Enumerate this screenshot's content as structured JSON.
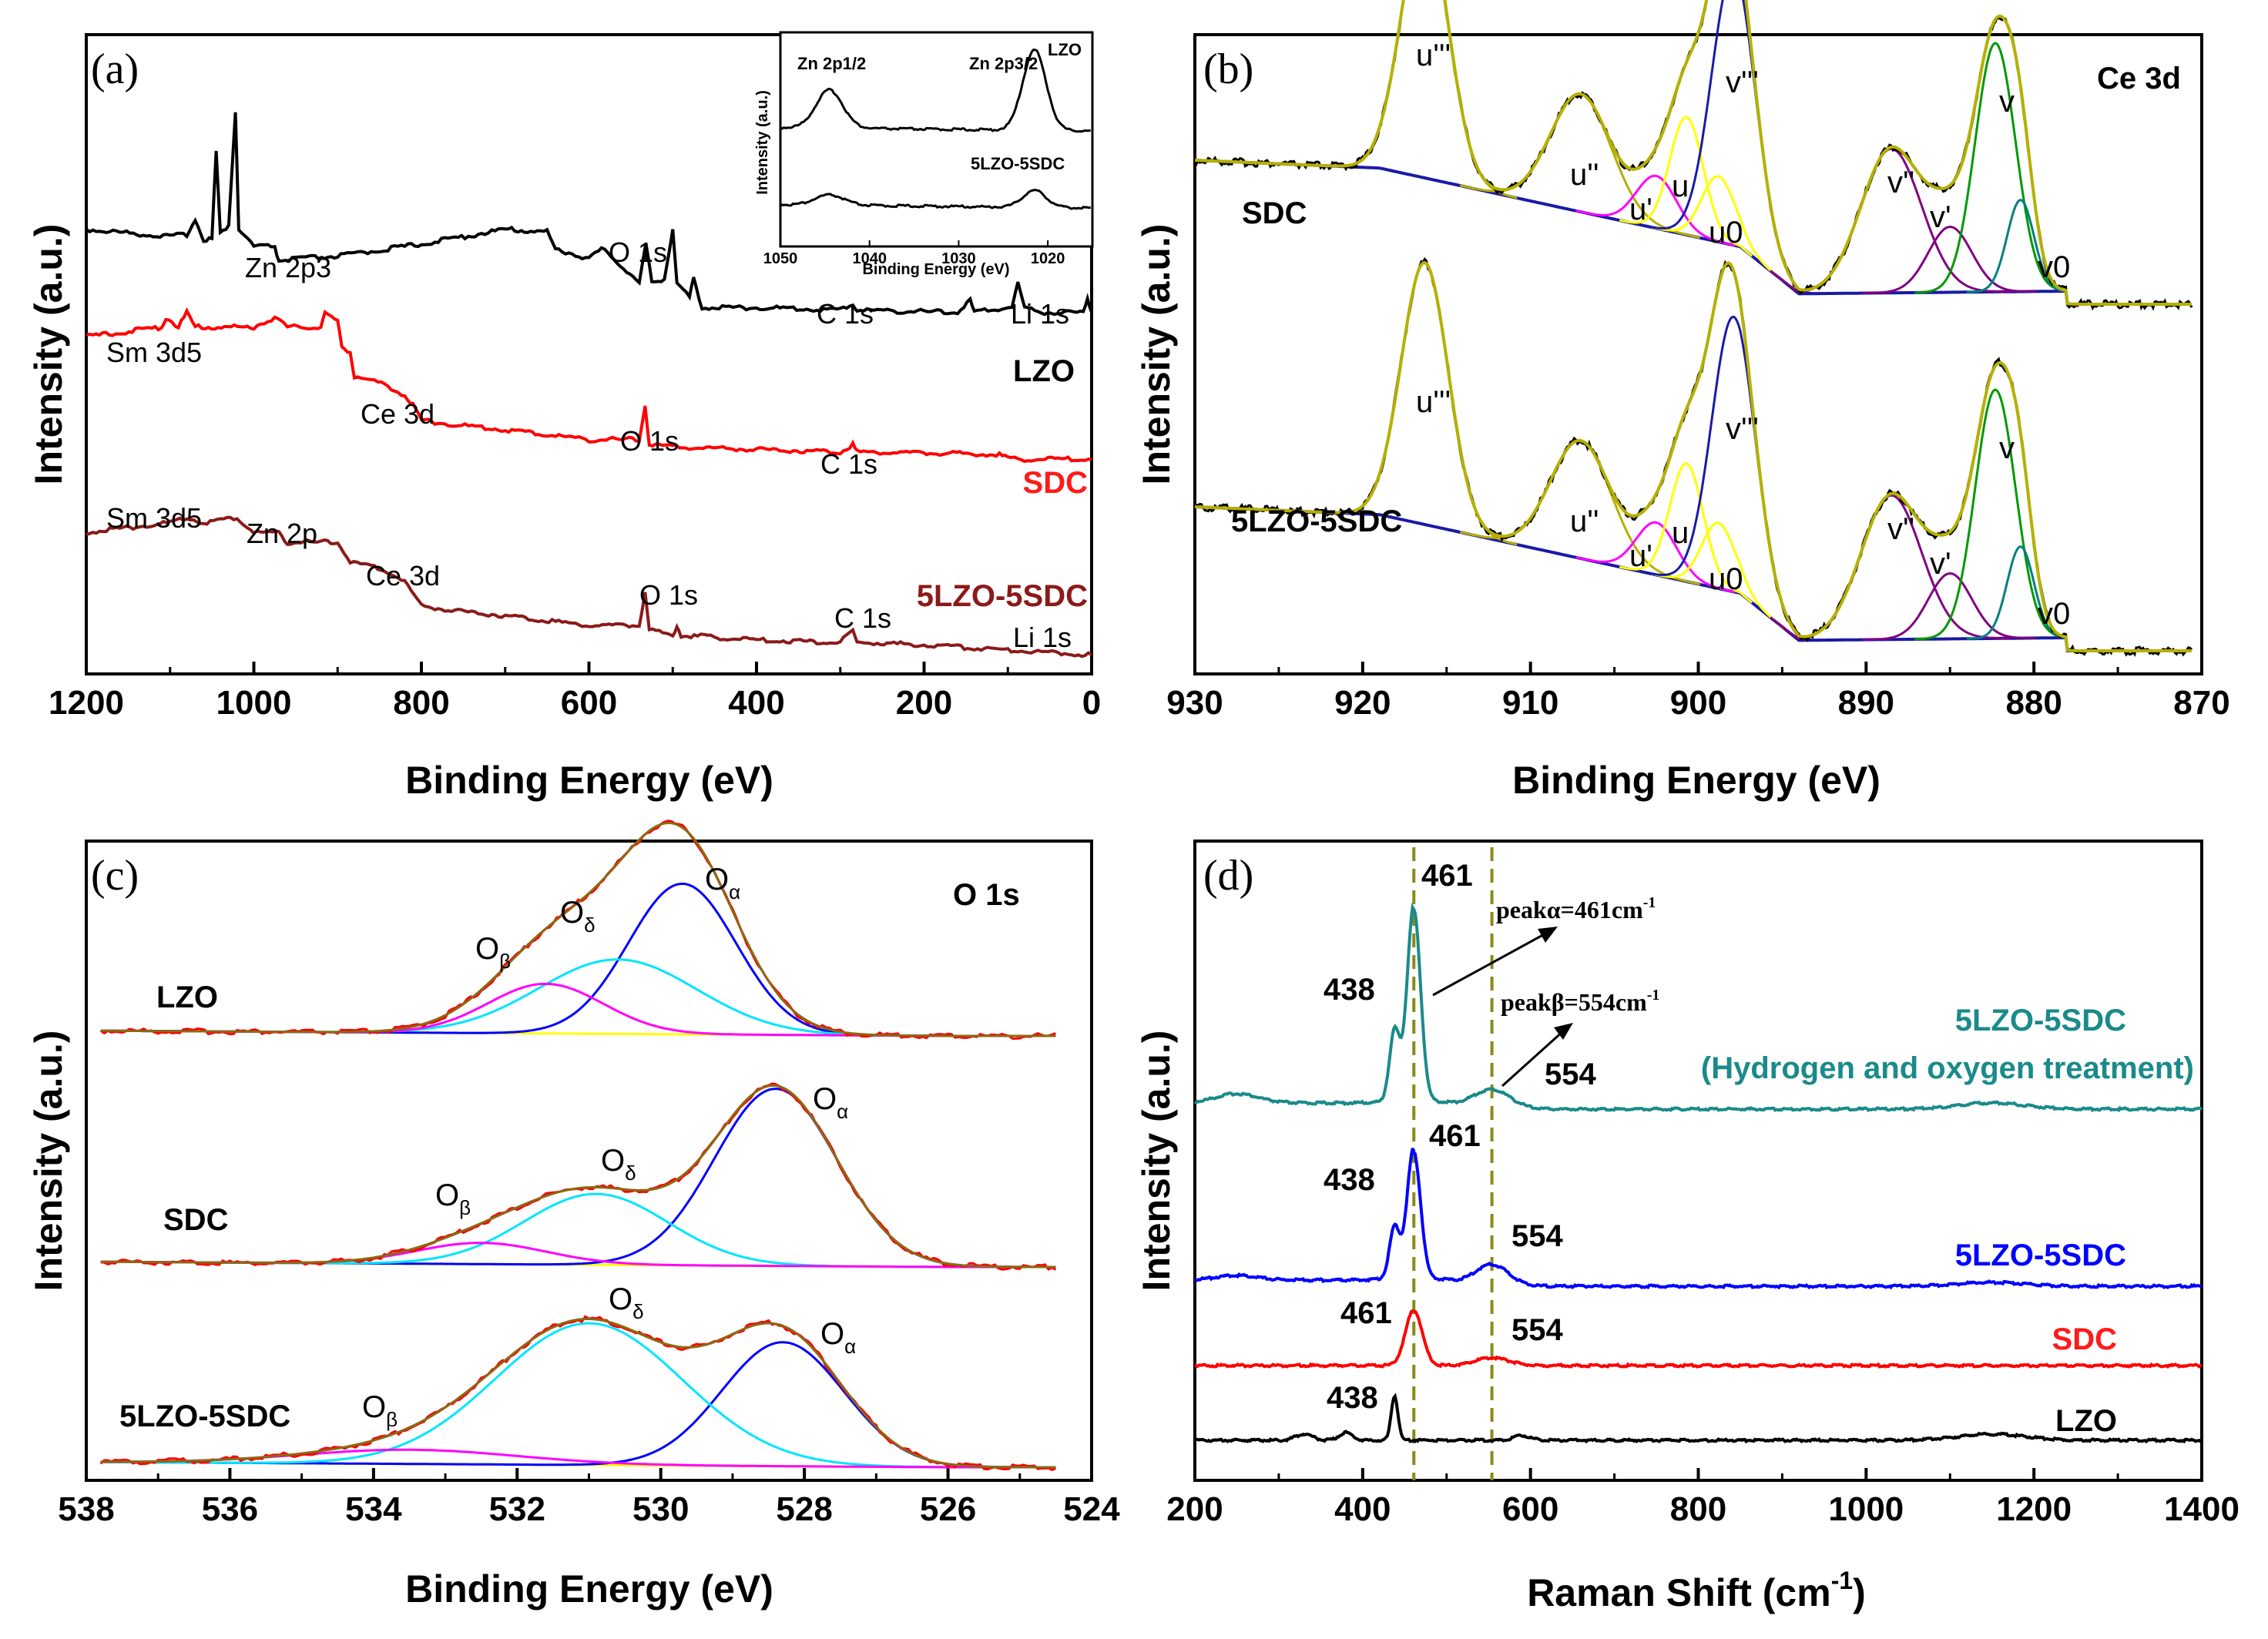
{
  "figure_labels": {
    "a": "(a)",
    "b": "(b)",
    "c": "(c)",
    "d": "(d)"
  },
  "chart_data": [
    {
      "panel": "a",
      "type": "line",
      "title": "",
      "xlabel": "Binding Energy (eV)",
      "ylabel": "Intensity (a.u.)",
      "xlim": [
        1200,
        0
      ],
      "xticks": [
        1200,
        1000,
        800,
        600,
        400,
        200,
        0
      ],
      "series": [
        {
          "name": "LZO",
          "color": "#000000",
          "offset": 0.7,
          "points": [
            [
              1200,
              0.17
            ],
            [
              1100,
              0.155
            ],
            [
              1080,
              0.16
            ],
            [
              1070,
              0.19
            ],
            [
              1060,
              0.15
            ],
            [
              1050,
              0.15
            ],
            [
              1045,
              0.33
            ],
            [
              1040,
              0.16
            ],
            [
              1030,
              0.18
            ],
            [
              1022,
              0.41
            ],
            [
              1018,
              0.17
            ],
            [
              1000,
              0.135
            ],
            [
              975,
              0.135
            ],
            [
              970,
              0.105
            ],
            [
              950,
              0.11
            ],
            [
              900,
              0.115
            ],
            [
              800,
              0.14
            ],
            [
              700,
              0.17
            ],
            [
              650,
              0.165
            ],
            [
              640,
              0.13
            ],
            [
              600,
              0.11
            ],
            [
              585,
              0.13
            ],
            [
              570,
              0.11
            ],
            [
              540,
              0.06
            ],
            [
              532,
              0.14
            ],
            [
              525,
              0.06
            ],
            [
              510,
              0.07
            ],
            [
              500,
              0.17
            ],
            [
              495,
              0.06
            ],
            [
              480,
              0.03
            ],
            [
              475,
              0.07
            ],
            [
              465,
              0.01
            ],
            [
              400,
              0.01
            ],
            [
              300,
              0.005
            ],
            [
              285,
              0.018
            ],
            [
              280,
              0.005
            ],
            [
              160,
              0.0
            ],
            [
              145,
              0.025
            ],
            [
              140,
              0.0
            ],
            [
              95,
              0.012
            ],
            [
              88,
              0.06
            ],
            [
              80,
              0.01
            ],
            [
              60,
              0.0
            ],
            [
              10,
              0.0
            ],
            [
              5,
              0.03
            ],
            [
              0,
              0.0
            ]
          ]
        },
        {
          "name": "SDC",
          "color": "#ff0000",
          "offset": 0.4,
          "points": [
            [
              1200,
              0.25
            ],
            [
              1110,
              0.27
            ],
            [
              1105,
              0.29
            ],
            [
              1090,
              0.27
            ],
            [
              1080,
              0.3
            ],
            [
              1070,
              0.27
            ],
            [
              1000,
              0.27
            ],
            [
              975,
              0.29
            ],
            [
              960,
              0.27
            ],
            [
              920,
              0.27
            ],
            [
              915,
              0.3
            ],
            [
              900,
              0.28
            ],
            [
              895,
              0.23
            ],
            [
              885,
              0.22
            ],
            [
              880,
              0.17
            ],
            [
              860,
              0.16
            ],
            [
              840,
              0.15
            ],
            [
              820,
              0.13
            ],
            [
              810,
              0.11
            ],
            [
              800,
              0.08
            ],
            [
              760,
              0.07
            ],
            [
              700,
              0.06
            ],
            [
              600,
              0.04
            ],
            [
              540,
              0.04
            ],
            [
              533,
              0.11
            ],
            [
              528,
              0.03
            ],
            [
              500,
              0.025
            ],
            [
              400,
              0.02
            ],
            [
              300,
              0.015
            ],
            [
              285,
              0.03
            ],
            [
              280,
              0.015
            ],
            [
              110,
              0.01
            ],
            [
              100,
              0.0
            ],
            [
              0,
              0.0
            ]
          ]
        },
        {
          "name": "5LZO-5SDC",
          "color": "#8b1a1a",
          "offset": 0.0,
          "points": [
            [
              1200,
              0.25
            ],
            [
              1100,
              0.27
            ],
            [
              1080,
              0.28
            ],
            [
              1060,
              0.27
            ],
            [
              1020,
              0.28
            ],
            [
              1000,
              0.25
            ],
            [
              970,
              0.25
            ],
            [
              960,
              0.23
            ],
            [
              900,
              0.23
            ],
            [
              885,
              0.19
            ],
            [
              860,
              0.18
            ],
            [
              840,
              0.17
            ],
            [
              820,
              0.15
            ],
            [
              800,
              0.1
            ],
            [
              760,
              0.09
            ],
            [
              700,
              0.08
            ],
            [
              600,
              0.06
            ],
            [
              540,
              0.06
            ],
            [
              533,
              0.13
            ],
            [
              528,
              0.05
            ],
            [
              500,
              0.04
            ],
            [
              495,
              0.06
            ],
            [
              490,
              0.04
            ],
            [
              400,
              0.03
            ],
            [
              300,
              0.025
            ],
            [
              285,
              0.05
            ],
            [
              280,
              0.025
            ],
            [
              200,
              0.02
            ],
            [
              100,
              0.01
            ],
            [
              0,
              0.0
            ]
          ]
        }
      ],
      "series_labels": [
        "LZO",
        "SDC",
        "5LZO-5SDC"
      ],
      "annotations": [
        "Zn 2p3",
        "O 1s",
        "C 1s",
        "Li 1s",
        "Sm 3d5",
        "Ce 3d",
        "O 1s",
        "C 1s",
        "Sm 3d5",
        "Zn 2p",
        "Ce 3d",
        "O 1s",
        "C 1s",
        "Li 1s"
      ],
      "inset": {
        "type": "line",
        "xlabel": "Binding Energy (eV)",
        "ylabel": "Intensity (a.u.)",
        "xlim": [
          1050,
          1015
        ],
        "xticks": [
          1050,
          1040,
          1030,
          1020
        ],
        "labels": [
          "Zn 2p1/2",
          "Zn 2p3/2",
          "LZO",
          "5LZO-5SDC"
        ],
        "series": [
          {
            "name": "LZO",
            "peaks": [
              [
                1044.5,
                0.45,
                1.5
              ],
              [
                1021.5,
                0.95,
                1.3
              ]
            ],
            "base": 0.6
          },
          {
            "name": "5LZO-5SDC",
            "peaks": [
              [
                1044.5,
                0.12,
                1.6
              ],
              [
                1021.5,
                0.2,
                1.3
              ]
            ],
            "base": 0.15
          }
        ]
      }
    },
    {
      "panel": "b",
      "type": "line",
      "title": "Ce 3d",
      "xlabel": "Binding Energy (eV)",
      "ylabel": "Intensity (a.u.)",
      "xlim": [
        930,
        870
      ],
      "xticks": [
        930,
        920,
        910,
        900,
        890,
        880,
        870
      ],
      "samples": [
        "SDC",
        "5LZO-5SDC"
      ],
      "peak_labels": [
        "u'''",
        "u''",
        "u'",
        "u",
        "u0",
        "v'''",
        "v''",
        "v'",
        "v",
        "v0"
      ],
      "peak_positions": [
        916.3,
        907.0,
        902.5,
        900.7,
        898.8,
        897.9,
        888.5,
        885.0,
        882.3,
        880.8
      ],
      "fit_colors": {
        "data": "#000000",
        "envelope": "#b5b000",
        "background": "#1a1aa6",
        "u0_v0": "#008080",
        "u": "#ffff00",
        "u_prime": "#ff00ff",
        "v_prime": "#800080",
        "v": "#009900"
      }
    },
    {
      "panel": "c",
      "type": "line",
      "title": "O 1s",
      "xlabel": "Binding Energy (eV)",
      "ylabel": "Intensity (a.u.)",
      "xlim": [
        538,
        524
      ],
      "xticks": [
        538,
        536,
        534,
        532,
        530,
        528,
        526,
        524
      ],
      "samples": [
        {
          "name": "LZO",
          "O_alpha": 529.7,
          "O_delta": 530.6,
          "O_beta": 531.6
        },
        {
          "name": "SDC",
          "O_alpha": 528.4,
          "O_delta": 530.9,
          "O_beta": 532.5
        },
        {
          "name": "5LZO-5SDC",
          "O_alpha": 528.3,
          "O_delta": 531.0,
          "O_beta": 533.5
        }
      ],
      "peak_labels": [
        "O",
        "α",
        "O",
        "δ",
        "O",
        "β"
      ],
      "fit_colors": {
        "data": "#ff0000",
        "envelope": "#8b6914",
        "O_alpha": "#0000ff",
        "O_delta": "#00e5ff",
        "O_beta": "#ff00ff",
        "background": "#ffff00"
      }
    },
    {
      "panel": "d",
      "type": "line",
      "title": "",
      "xlabel": "Raman Shift (cm",
      "xlabel_sup": "-1",
      "ylabel": "Intensity (a.u.)",
      "xlim": [
        200,
        1400
      ],
      "xticks": [
        200,
        400,
        600,
        800,
        1000,
        1200,
        1400
      ],
      "reference_lines": [
        461,
        554
      ],
      "series": [
        {
          "name": "5LZO-5SDC",
          "subtitle": "(Hydrogen and oxygen treatment)",
          "color": "#1a8a8a",
          "peaks_cm": [
            438,
            461,
            554
          ]
        },
        {
          "name": "5LZO-5SDC",
          "color": "#0000ff",
          "peaks_cm": [
            438,
            461,
            554
          ]
        },
        {
          "name": "SDC",
          "color": "#ff0000",
          "peaks_cm": [
            461,
            554
          ]
        },
        {
          "name": "LZO",
          "color": "#000000",
          "peaks_cm": [
            438
          ]
        }
      ],
      "peak_text": [
        "461",
        "438",
        "554",
        "461",
        "438",
        "554",
        "461",
        "554",
        "438"
      ],
      "callouts": [
        {
          "label": "peakα=461cm",
          "sup": "-1"
        },
        {
          "label": "peakβ=554cm",
          "sup": "-1"
        }
      ]
    }
  ]
}
